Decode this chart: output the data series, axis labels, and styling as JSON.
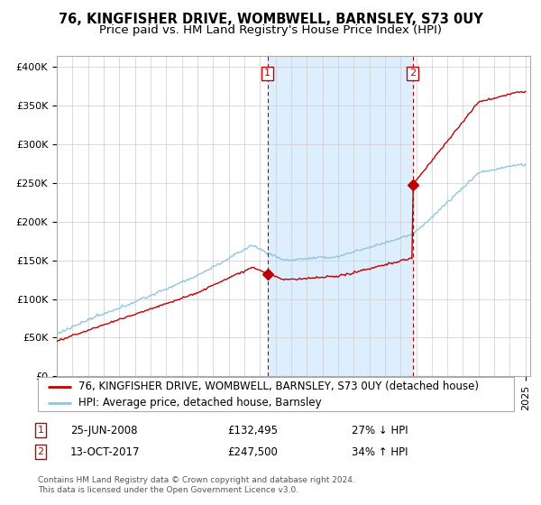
{
  "title": "76, KINGFISHER DRIVE, WOMBWELL, BARNSLEY, S73 0UY",
  "subtitle": "Price paid vs. HM Land Registry's House Price Index (HPI)",
  "ylabel_ticks": [
    "£0",
    "£50K",
    "£100K",
    "£150K",
    "£200K",
    "£250K",
    "£300K",
    "£350K",
    "£400K"
  ],
  "ytick_values": [
    0,
    50000,
    100000,
    150000,
    200000,
    250000,
    300000,
    350000,
    400000
  ],
  "ylim": [
    0,
    415000
  ],
  "xlim_start": 1995.0,
  "xlim_end": 2025.3,
  "sale1_x": 2008.48,
  "sale1_y": 132495,
  "sale2_x": 2017.78,
  "sale2_y": 247500,
  "hpi_color": "#92c5de",
  "price_color": "#c00000",
  "shade_color": "#ddeeff",
  "vline_color": "#c00000",
  "grid_color": "#cccccc",
  "background_color": "#ffffff",
  "legend1_text": "76, KINGFISHER DRIVE, WOMBWELL, BARNSLEY, S73 0UY (detached house)",
  "legend2_text": "HPI: Average price, detached house, Barnsley",
  "table_row1_date": "25-JUN-2008",
  "table_row1_price": "£132,495",
  "table_row1_hpi": "27% ↓ HPI",
  "table_row2_date": "13-OCT-2017",
  "table_row2_price": "£247,500",
  "table_row2_hpi": "34% ↑ HPI",
  "footnote": "Contains HM Land Registry data © Crown copyright and database right 2024.\nThis data is licensed under the Open Government Licence v3.0.",
  "title_fontsize": 10.5,
  "subtitle_fontsize": 9.5,
  "tick_fontsize": 8,
  "legend_fontsize": 8.5
}
